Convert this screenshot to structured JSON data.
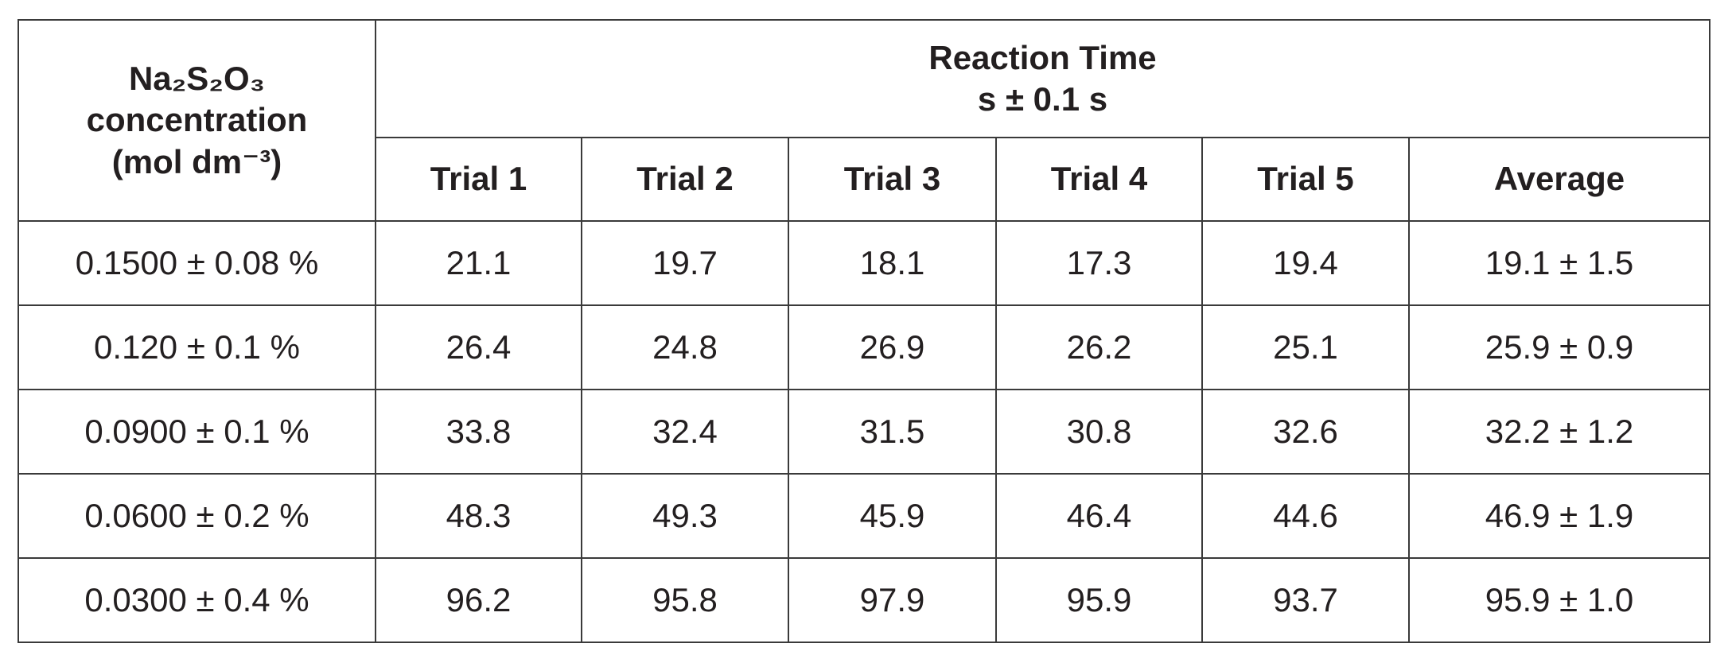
{
  "table": {
    "header": {
      "concentration": [
        "Na₂S₂O₃",
        "concentration",
        "(mol dm⁻³)"
      ],
      "reaction_time": [
        "Reaction Time",
        "s ± 0.1 s"
      ],
      "columns": [
        "Trial 1",
        "Trial 2",
        "Trial 3",
        "Trial 4",
        "Trial 5",
        "Average"
      ]
    },
    "rows": [
      [
        "0.1500 ± 0.08 %",
        21.1,
        19.7,
        18.1,
        17.3,
        19.4,
        "19.1 ± 1.5"
      ],
      [
        "0.120 ± 0.1 %",
        26.4,
        24.8,
        26.9,
        26.2,
        25.1,
        "25.9 ± 0.9"
      ],
      [
        "0.0900 ± 0.1 %",
        33.8,
        32.4,
        31.5,
        30.8,
        32.6,
        "32.2 ± 1.2"
      ],
      [
        "0.0600 ± 0.2 %",
        48.3,
        49.3,
        45.9,
        46.4,
        44.6,
        "46.9 ± 1.9"
      ],
      [
        "0.0300 ± 0.4 %",
        96.2,
        95.8,
        97.9,
        95.9,
        93.7,
        "95.9 ± 1.0"
      ]
    ]
  }
}
